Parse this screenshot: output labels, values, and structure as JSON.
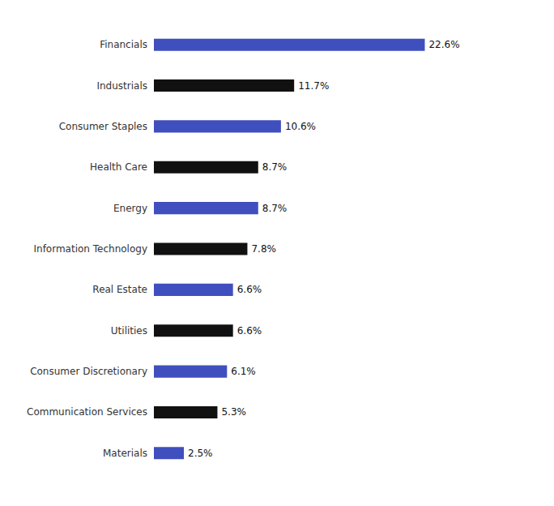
{
  "chart_data": {
    "type": "bar",
    "orientation": "horizontal",
    "categories": [
      "Financials",
      "Industrials",
      "Consumer Staples",
      "Health Care",
      "Energy",
      "Information Technology",
      "Real Estate",
      "Utilities",
      "Consumer Discretionary",
      "Communication Services",
      "Materials"
    ],
    "values": [
      22.6,
      11.7,
      10.6,
      8.7,
      8.7,
      7.8,
      6.6,
      6.6,
      6.1,
      5.3,
      2.5
    ],
    "value_labels": [
      "22.6%",
      "11.7%",
      "10.6%",
      "8.7%",
      "8.7%",
      "7.8%",
      "6.6%",
      "6.6%",
      "6.1%",
      "5.3%",
      "2.5%"
    ],
    "colors": [
      "#3f4fbe",
      "#111111",
      "#3f4fbe",
      "#111111",
      "#3f4fbe",
      "#111111",
      "#3f4fbe",
      "#111111",
      "#3f4fbe",
      "#111111",
      "#3f4fbe"
    ],
    "xlim": [
      0,
      30
    ],
    "data_labels": true,
    "tick_labels": "y",
    "grid": false
  }
}
